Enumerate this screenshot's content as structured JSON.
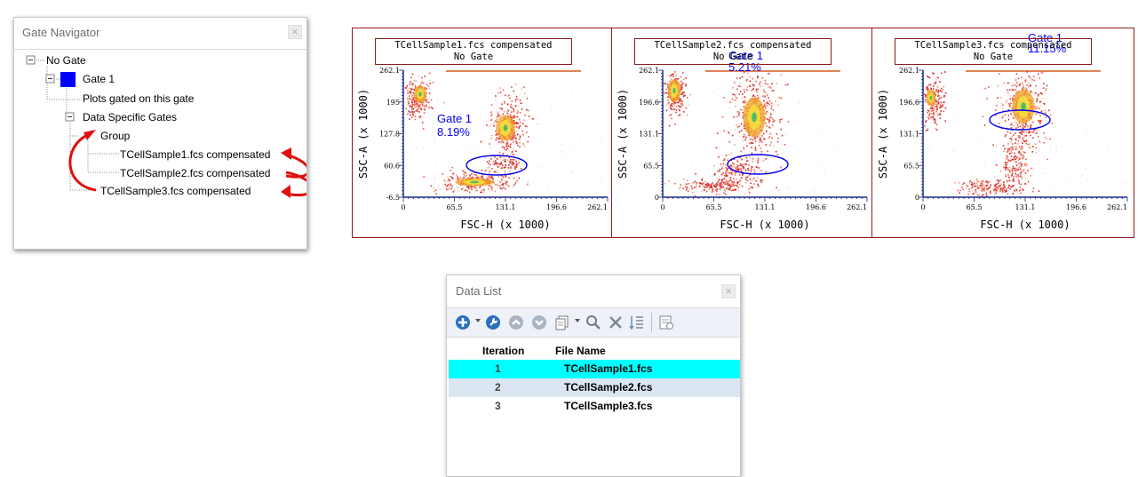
{
  "gate_navigator": {
    "title": "Gate Navigator",
    "nodes": {
      "no_gate": "No Gate",
      "gate1": "Gate 1",
      "plots_gated": "Plots gated on this gate",
      "data_specific": "Data Specific Gates",
      "group": "Group",
      "sample1": "TCellSample1.fcs compensated",
      "sample2": "TCellSample2.fcs compensated",
      "sample3": "TCellSample3.fcs compensated"
    },
    "gate_color": "#0000ff",
    "arrow_color": "#e01010"
  },
  "plots": [
    {
      "title_line1": "TCellSample1.fcs compensated",
      "title_line2": "No Gate",
      "gate_label": "Gate 1",
      "gate_percent": "8.19%",
      "xlabel": "FSC-H (x 1000)",
      "ylabel": "SSC-A (x 1000)",
      "x_ticks": [
        "0",
        "65.5",
        "131.1",
        "196.6",
        "262.1"
      ],
      "y_ticks": [
        "262.1",
        "195",
        "127.8",
        "60.6",
        "-6.5"
      ]
    },
    {
      "title_line1": "TCellSample2.fcs compensated",
      "title_line2": "No Gate",
      "gate_label": "Gate 1",
      "gate_percent": "5.21%",
      "xlabel": "FSC-H (x 1000)",
      "ylabel": "SSC-A (x 1000)",
      "x_ticks": [
        "0",
        "65.5",
        "131.1",
        "196.6",
        "262.1"
      ],
      "y_ticks": [
        "262.1",
        "196.6",
        "131.1",
        "65.5",
        "0"
      ]
    },
    {
      "title_line1": "TCellSample3.fcs compensated",
      "title_line2": "No Gate",
      "gate_label": "Gate 1",
      "gate_percent": "11.15%",
      "xlabel": "FSC-H (x 1000)",
      "ylabel": "SSC-A (x 1000)",
      "x_ticks": [
        "0",
        "65.5",
        "131.1",
        "196.6",
        "262.1"
      ],
      "y_ticks": [
        "262.1",
        "196.6",
        "131.1",
        "65.5",
        "0"
      ]
    }
  ],
  "data_list": {
    "title": "Data List",
    "toolbar_icons": [
      "add-icon",
      "wrench-icon",
      "up-icon",
      "down-icon",
      "copy-icon",
      "search-icon",
      "delete-icon",
      "sort-icon",
      "settings-icon"
    ],
    "columns": {
      "iteration": "Iteration",
      "file_name": "File Name"
    },
    "rows": [
      {
        "iteration": "1",
        "file": "TCellSample1.fcs",
        "selected": true
      },
      {
        "iteration": "2",
        "file": "TCellSample2.fcs",
        "selected": false
      },
      {
        "iteration": "3",
        "file": "TCellSample3.fcs",
        "selected": false
      }
    ],
    "selected_color": "#00ffff",
    "alt_row_color": "#dbe6f2"
  }
}
